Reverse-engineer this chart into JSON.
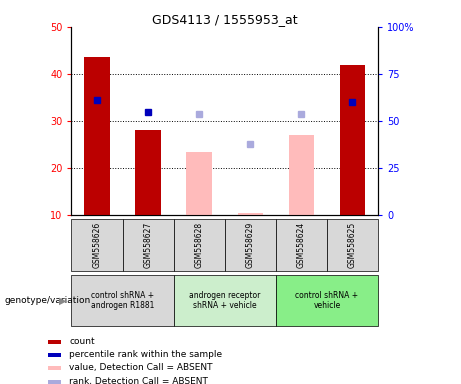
{
  "title": "GDS4113 / 1555953_at",
  "samples": [
    "GSM558626",
    "GSM558627",
    "GSM558628",
    "GSM558629",
    "GSM558624",
    "GSM558625"
  ],
  "bar_values": [
    43.5,
    28.0,
    null,
    null,
    null,
    42.0
  ],
  "bar_absent_values": [
    null,
    null,
    23.5,
    10.5,
    27.0,
    null
  ],
  "blue_dot_values": [
    34.5,
    32.0,
    null,
    null,
    null,
    34.0
  ],
  "blue_dot_absent_values": [
    null,
    null,
    31.5,
    25.0,
    31.5,
    null
  ],
  "ylim": [
    10,
    50
  ],
  "y2lim": [
    0,
    100
  ],
  "yticks": [
    10,
    20,
    30,
    40,
    50
  ],
  "y2ticks": [
    0,
    25,
    50,
    75,
    100
  ],
  "y2ticklabels": [
    "0",
    "25",
    "50",
    "75",
    "100%"
  ],
  "bar_color": "#bb0000",
  "bar_absent_color": "#ffbbbb",
  "dot_color": "#0000bb",
  "dot_absent_color": "#aaaadd",
  "bg_color": "#ffffff",
  "plot_bg_color": "#ffffff",
  "groups": [
    {
      "label": "control shRNA +\nandrogen R1881",
      "samples": [
        0,
        1
      ],
      "color": "#d8d8d8"
    },
    {
      "label": "androgen receptor\nshRNA + vehicle",
      "samples": [
        2,
        3
      ],
      "color": "#cceecc"
    },
    {
      "label": "control shRNA +\nvehicle",
      "samples": [
        4,
        5
      ],
      "color": "#88ee88"
    }
  ],
  "legend_items": [
    {
      "label": "count",
      "color": "#bb0000"
    },
    {
      "label": "percentile rank within the sample",
      "color": "#0000bb"
    },
    {
      "label": "value, Detection Call = ABSENT",
      "color": "#ffbbbb"
    },
    {
      "label": "rank, Detection Call = ABSENT",
      "color": "#aaaadd"
    }
  ],
  "genotype_label": "genotype/variation"
}
